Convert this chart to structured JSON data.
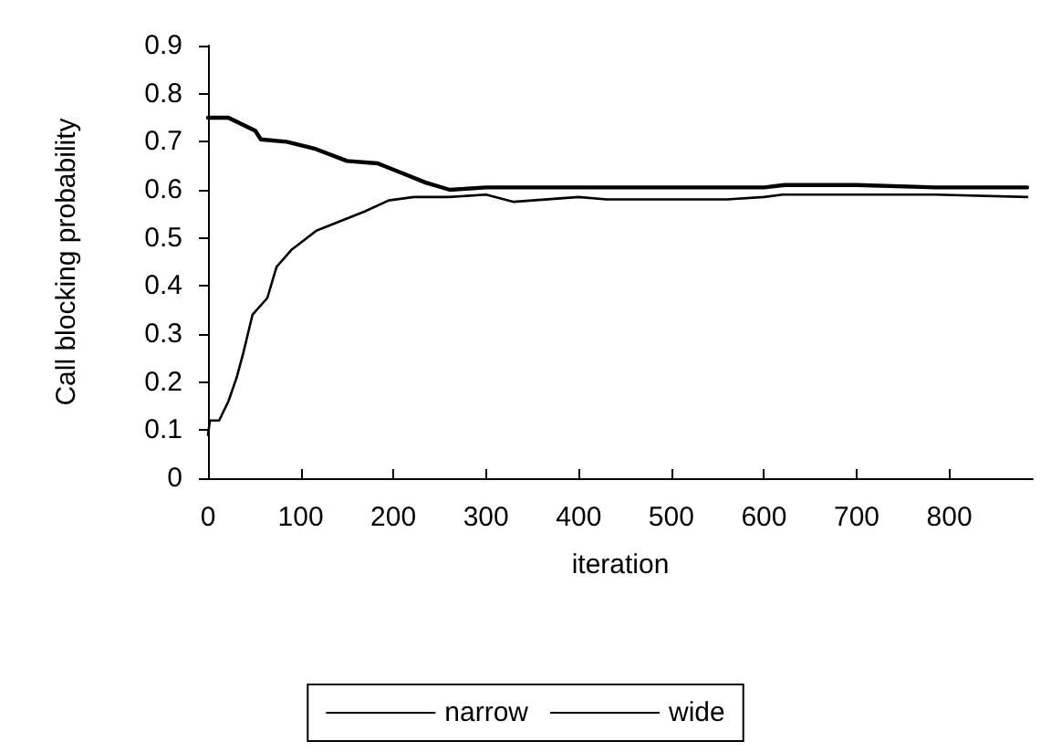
{
  "chart_data": {
    "type": "line",
    "xlabel": "iteration",
    "ylabel": "Call blocking probability",
    "xlim": [
      0,
      890
    ],
    "xticks": [
      0,
      100,
      200,
      300,
      400,
      500,
      600,
      700,
      800
    ],
    "ylim": [
      0,
      0.9
    ],
    "yticks": [
      0,
      0.1,
      0.2,
      0.3,
      0.4,
      0.5,
      0.6,
      0.7,
      0.8,
      0.9
    ],
    "grid": false,
    "legend": "bottom",
    "marker": "none",
    "line_style": "solid",
    "series": [
      {
        "name": "narrow",
        "color": "#000000",
        "x": [
          0,
          2,
          12,
          22,
          31,
          38,
          48,
          64,
          74,
          90,
          117,
          143,
          169,
          195,
          222,
          260,
          300,
          330,
          400,
          430,
          500,
          560,
          600,
          620,
          700,
          785,
          884
        ],
        "values": [
          0.09,
          0.12,
          0.12,
          0.16,
          0.21,
          0.26,
          0.34,
          0.375,
          0.44,
          0.475,
          0.515,
          0.535,
          0.555,
          0.578,
          0.585,
          0.585,
          0.59,
          0.575,
          0.585,
          0.58,
          0.58,
          0.58,
          0.585,
          0.59,
          0.59,
          0.59,
          0.585
        ]
      },
      {
        "name": "wide",
        "color": "#000000",
        "x": [
          0,
          22,
          51,
          57,
          85,
          116,
          150,
          183,
          209,
          235,
          261,
          300,
          600,
          622,
          700,
          785,
          884
        ],
        "values": [
          0.75,
          0.75,
          0.723,
          0.705,
          0.7,
          0.685,
          0.66,
          0.655,
          0.635,
          0.615,
          0.6,
          0.605,
          0.605,
          0.61,
          0.61,
          0.605,
          0.605
        ]
      }
    ]
  }
}
